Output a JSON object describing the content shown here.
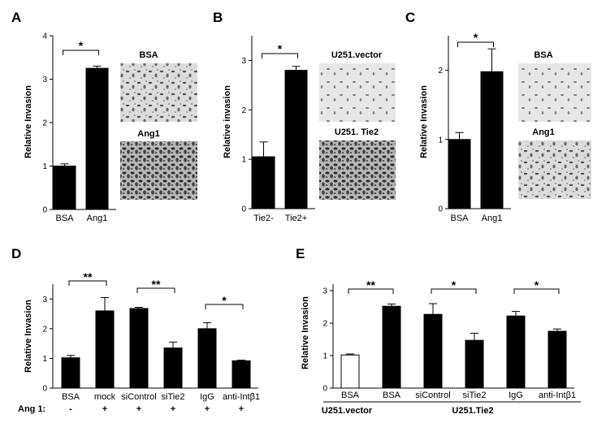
{
  "panels": [
    {
      "label": "A"
    },
    {
      "label": "B"
    },
    {
      "label": "C"
    },
    {
      "label": "D"
    },
    {
      "label": "E"
    }
  ],
  "micrographs": {
    "A_top": "BSA",
    "A_bottom": "Ang1",
    "B_top": "U251.vector",
    "B_bottom": "U251. Tie2",
    "C_top": "BSA",
    "C_bottom": "Ang1"
  },
  "chart_data": [
    {
      "type": "bar",
      "panel": "A",
      "categories": [
        "BSA",
        "Ang1"
      ],
      "values": [
        1.0,
        3.25
      ],
      "errors": [
        0.05,
        0.05
      ],
      "ylabel": "Relative Invasion",
      "ylim": [
        0,
        4
      ],
      "yticks": [
        0,
        1,
        2,
        3,
        4
      ],
      "bar_colors": [
        "#000000",
        "#000000"
      ],
      "significance": [
        {
          "from": 0,
          "to": 1,
          "label": "*"
        }
      ]
    },
    {
      "type": "bar",
      "panel": "B",
      "categories": [
        "Tie2-",
        "Tie2+"
      ],
      "values": [
        1.05,
        2.8
      ],
      "errors": [
        0.3,
        0.08
      ],
      "ylabel": "Relative  invasion",
      "ylim": [
        0,
        3.5
      ],
      "yticks": [
        0,
        1,
        2,
        3
      ],
      "bar_colors": [
        "#000000",
        "#000000"
      ],
      "significance": [
        {
          "from": 0,
          "to": 1,
          "label": "*"
        }
      ]
    },
    {
      "type": "bar",
      "panel": "C",
      "categories": [
        "BSA",
        "Ang1"
      ],
      "values": [
        1.0,
        1.98
      ],
      "errors": [
        0.1,
        0.33
      ],
      "ylabel": "Relative Invasion",
      "ylim": [
        0,
        2.5
      ],
      "yticks": [
        0,
        1,
        2
      ],
      "bar_colors": [
        "#000000",
        "#000000"
      ],
      "significance": [
        {
          "from": 0,
          "to": 1,
          "label": "*"
        }
      ]
    },
    {
      "type": "bar",
      "panel": "D",
      "categories": [
        "BSA",
        "mock",
        "siControl",
        "siTie2",
        "IgG",
        "anti-Intβ1"
      ],
      "values": [
        1.02,
        2.6,
        2.68,
        1.35,
        2.0,
        0.92
      ],
      "errors": [
        0.08,
        0.45,
        0.04,
        0.2,
        0.2,
        0.02
      ],
      "ylabel": "Relative Invasion",
      "ylim": [
        0,
        3.5
      ],
      "yticks": [
        0,
        1,
        2,
        3
      ],
      "bar_colors": [
        "#000000",
        "#000000",
        "#000000",
        "#000000",
        "#000000",
        "#000000"
      ],
      "row_label": "Ang 1:",
      "row_values": [
        "-",
        "+",
        "+",
        "+",
        "+",
        "+"
      ],
      "significance": [
        {
          "from": 0,
          "to": 1,
          "label": "**"
        },
        {
          "from": 2,
          "to": 3,
          "label": "**"
        },
        {
          "from": 4,
          "to": 5,
          "label": "*"
        }
      ]
    },
    {
      "type": "bar",
      "panel": "E",
      "categories": [
        "BSA",
        "BSA",
        "siControl",
        "siTie2",
        "IgG",
        "anti-Intβ1"
      ],
      "values": [
        1.02,
        2.52,
        2.27,
        1.47,
        2.22,
        1.75
      ],
      "errors": [
        0.03,
        0.07,
        0.33,
        0.22,
        0.14,
        0.07
      ],
      "ylabel": "Relative Invasion",
      "ylim": [
        0,
        3.2
      ],
      "yticks": [
        0,
        1,
        2,
        3
      ],
      "bar_colors": [
        "#ffffff",
        "#000000",
        "#000000",
        "#000000",
        "#000000",
        "#000000"
      ],
      "groups": [
        {
          "label": "U251.vector",
          "from": 0,
          "to": 0
        },
        {
          "label": "U251.Tie2",
          "from": 1,
          "to": 5
        }
      ],
      "significance": [
        {
          "from": 0,
          "to": 1,
          "label": "**"
        },
        {
          "from": 2,
          "to": 3,
          "label": "*"
        },
        {
          "from": 4,
          "to": 5,
          "label": "*"
        }
      ]
    }
  ]
}
